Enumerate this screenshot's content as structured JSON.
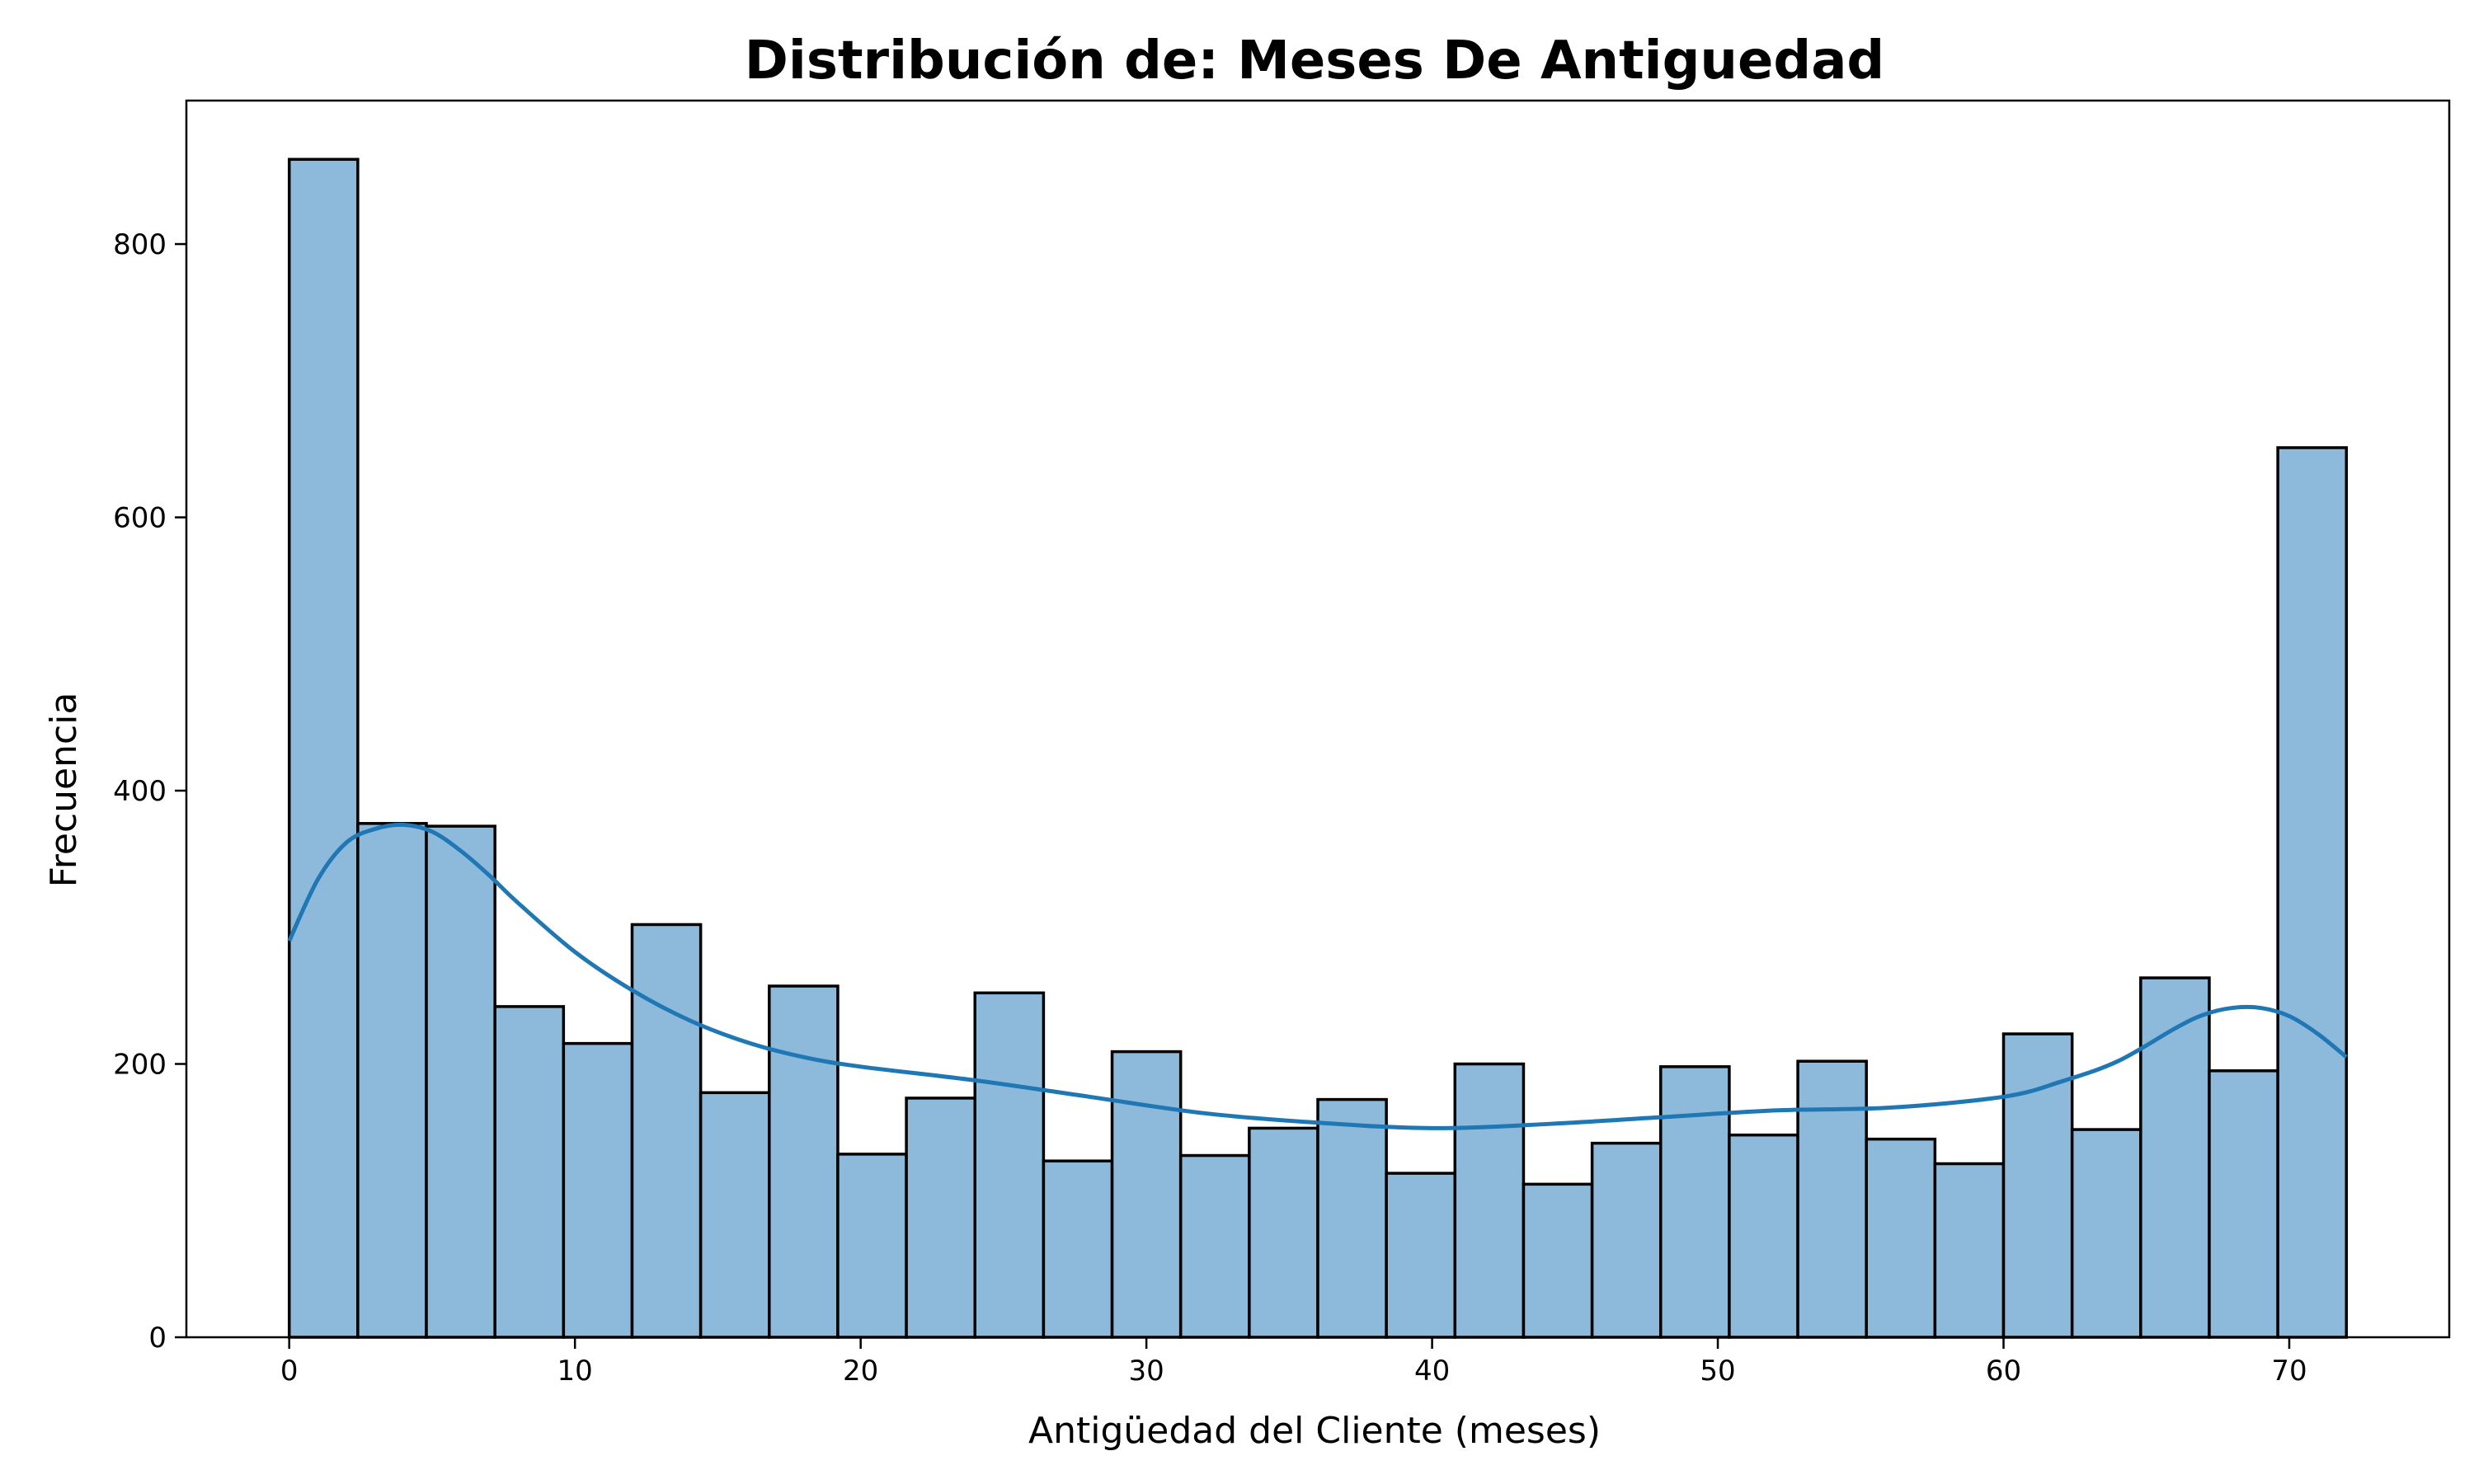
{
  "chart_data": {
    "type": "bar",
    "title": "Distribución de: Meses De Antiguedad",
    "xlabel": "Antigüedad del Cliente (meses)",
    "ylabel": "Frecuencia",
    "xlim": [
      -3.6,
      75.6
    ],
    "ylim": [
      0,
      905
    ],
    "xticks": [
      0,
      10,
      20,
      30,
      40,
      50,
      60,
      70
    ],
    "yticks": [
      0,
      200,
      400,
      600,
      800
    ],
    "bin_edges": [
      0,
      2.4,
      4.8,
      7.2,
      9.6,
      12.0,
      14.4,
      16.8,
      19.2,
      21.6,
      24.0,
      26.4,
      28.8,
      31.2,
      33.6,
      36.0,
      38.4,
      40.8,
      43.2,
      45.6,
      48.0,
      50.4,
      52.8,
      55.2,
      57.6,
      60.0,
      62.4,
      64.8,
      67.2,
      69.6,
      72.0
    ],
    "values": [
      862,
      376,
      374,
      242,
      215,
      302,
      179,
      257,
      134,
      175,
      252,
      129,
      209,
      133,
      153,
      174,
      120,
      200,
      112,
      142,
      198,
      148,
      202,
      145,
      127,
      222,
      152,
      263,
      195,
      651
    ],
    "kde": {
      "x": [
        0,
        1,
        2,
        3,
        4,
        5,
        6,
        7,
        8,
        10,
        12,
        14,
        16,
        18,
        20,
        24,
        28,
        32,
        36,
        40,
        44,
        48,
        52,
        56,
        60,
        62,
        64,
        66,
        67,
        68,
        69,
        70,
        71,
        72
      ],
      "y": [
        290,
        335,
        362,
        372,
        375,
        370,
        356,
        338,
        318,
        282,
        254,
        232,
        216,
        205,
        198,
        188,
        176,
        164,
        157,
        153,
        156,
        161,
        166,
        168,
        176,
        187,
        202,
        226,
        236,
        241,
        241,
        235,
        222,
        205
      ]
    },
    "grid": false,
    "legend": false
  }
}
